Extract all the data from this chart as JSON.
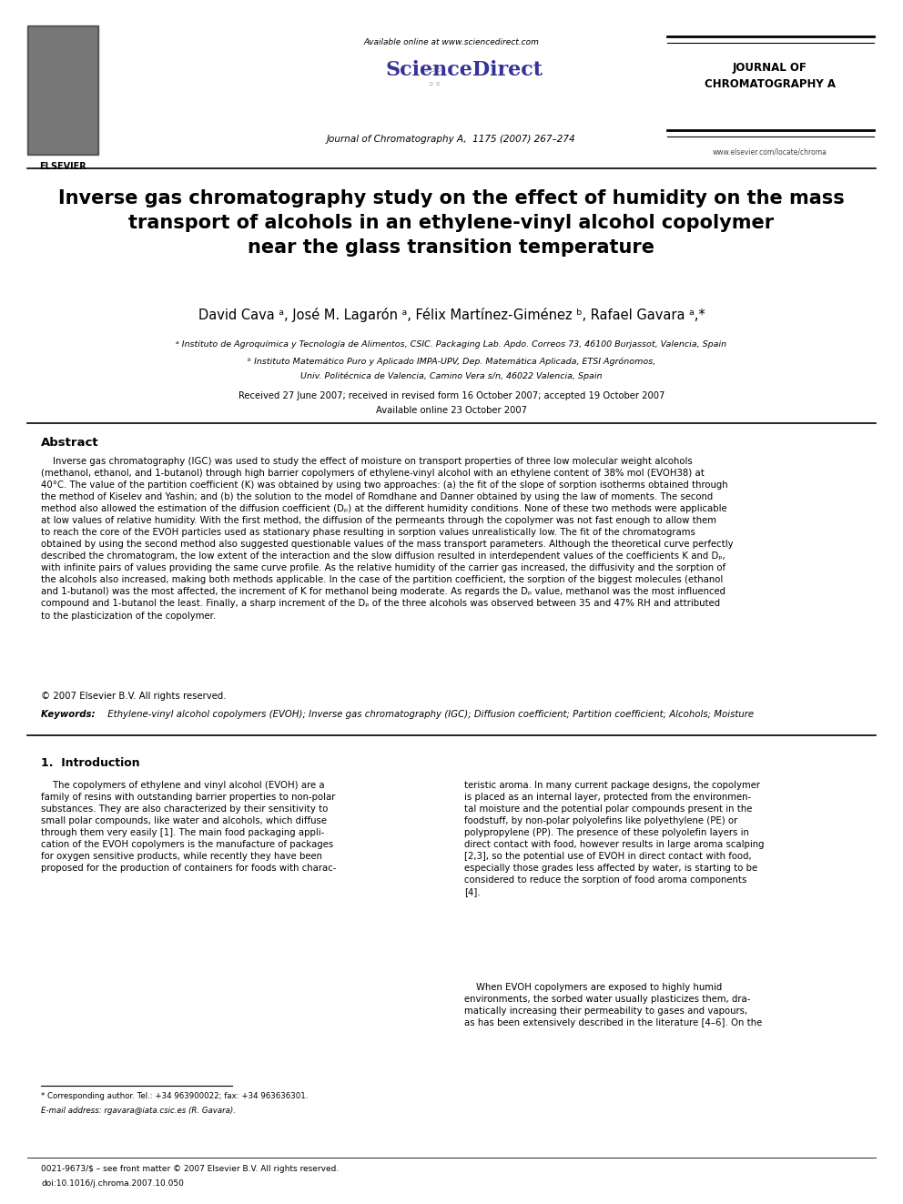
{
  "page_width": 9.92,
  "page_height": 13.23,
  "bg_color": "#ffffff",
  "header_available_online": "Available online at www.sciencedirect.com",
  "header_sciencedirect": "ScienceDirect",
  "header_journal_ref": "Journal of Chromatography A,  1175 (2007) 267–274",
  "header_journal_name_line1": "JOURNAL OF",
  "header_journal_name_line2": "CHROMATOGRAPHY A",
  "header_website": "www.elsevier.com/locate/chroma",
  "title": "Inverse gas chromatography study on the effect of humidity on the mass\ntransport of alcohols in an ethylene-vinyl alcohol copolymer\nnear the glass transition temperature",
  "authors": "David Cava ᵃ, José M. Lagarón ᵃ, Félix Martínez-Giménez ᵇ, Rafael Gavara ᵃ,*",
  "affil_a": "ᵃ Instituto de Agroquímica y Tecnología de Alimentos, CSIC. Packaging Lab. Apdo. Correos 73, 46100 Burjassot, Valencia, Spain",
  "affil_b_line1": "ᵇ Instituto Matemático Puro y Aplicado IMPA-UPV, Dep. Matemática Aplicada, ETSI Agrónomos,",
  "affil_b_line2": "Univ. Politécnica de Valencia, Camino Vera s/n, 46022 Valencia, Spain",
  "received": "Received 27 June 2007; received in revised form 16 October 2007; accepted 19 October 2007",
  "available": "Available online 23 October 2007",
  "abstract_title": "Abstract",
  "abstract_text": "    Inverse gas chromatography (IGC) was used to study the effect of moisture on transport properties of three low molecular weight alcohols\n(methanol, ethanol, and 1-butanol) through high barrier copolymers of ethylene-vinyl alcohol with an ethylene content of 38% mol (EVOH38) at\n40°C. The value of the partition coefficient (K) was obtained by using two approaches: (a) the fit of the slope of sorption isotherms obtained through\nthe method of Kiselev and Yashin; and (b) the solution to the model of Romdhane and Danner obtained by using the law of moments. The second\nmethod also allowed the estimation of the diffusion coefficient (Dₚ) at the different humidity conditions. None of these two methods were applicable\nat low values of relative humidity. With the first method, the diffusion of the permeants through the copolymer was not fast enough to allow them\nto reach the core of the EVOH particles used as stationary phase resulting in sorption values unrealistically low. The fit of the chromatograms\nobtained by using the second method also suggested questionable values of the mass transport parameters. Although the theoretical curve perfectly\ndescribed the chromatogram, the low extent of the interaction and the slow diffusion resulted in interdependent values of the coefficients K and Dₚ,\nwith infinite pairs of values providing the same curve profile. As the relative humidity of the carrier gas increased, the diffusivity and the sorption of\nthe alcohols also increased, making both methods applicable. In the case of the partition coefficient, the sorption of the biggest molecules (ethanol\nand 1-butanol) was the most affected, the increment of K for methanol being moderate. As regards the Dₚ value, methanol was the most influenced\ncompound and 1-butanol the least. Finally, a sharp increment of the Dₚ of the three alcohols was observed between 35 and 47% RH and attributed\nto the plasticization of the copolymer.",
  "copyright": "© 2007 Elsevier B.V. All rights reserved.",
  "keywords_label": "Keywords: ",
  "keywords_text": " Ethylene-vinyl alcohol copolymers (EVOH); Inverse gas chromatography (IGC); Diffusion coefficient; Partition coefficient; Alcohols; Moisture",
  "section1_title": "1.  Introduction",
  "intro_para1": "    The copolymers of ethylene and vinyl alcohol (EVOH) are a\nfamily of resins with outstanding barrier properties to non-polar\nsubstances. They are also characterized by their sensitivity to\nsmall polar compounds, like water and alcohols, which diffuse\nthrough them very easily [1]. The main food packaging appli-\ncation of the EVOH copolymers is the manufacture of packages\nfor oxygen sensitive products, while recently they have been\nproposed for the production of containers for foods with charac-",
  "intro_col2_para1": "teristic aroma. In many current package designs, the copolymer\nis placed as an internal layer, protected from the environmen-\ntal moisture and the potential polar compounds present in the\nfoodstuff, by non-polar polyolefins like polyethylene (PE) or\npolypropylene (PP). The presence of these polyolefin layers in\ndirect contact with food, however results in large aroma scalping\n[2,3], so the potential use of EVOH in direct contact with food,\nespecially those grades less affected by water, is starting to be\nconsidered to reduce the sorption of food aroma components\n[4].",
  "intro_col2_para2": "    When EVOH copolymers are exposed to highly humid\nenvironments, the sorbed water usually plasticizes them, dra-\nmatically increasing their permeability to gases and vapours,\nas has been extensively described in the literature [4–6]. On the",
  "footnote_star": "* Corresponding author. Tel.: +34 963900022; fax: +34 963636301.",
  "footnote_email": "E-mail address: rgavara@iata.csic.es (R. Gavara).",
  "footer_issn": "0021-9673/$ – see front matter © 2007 Elsevier B.V. All rights reserved.",
  "footer_doi": "doi:10.1016/j.chroma.2007.10.050"
}
